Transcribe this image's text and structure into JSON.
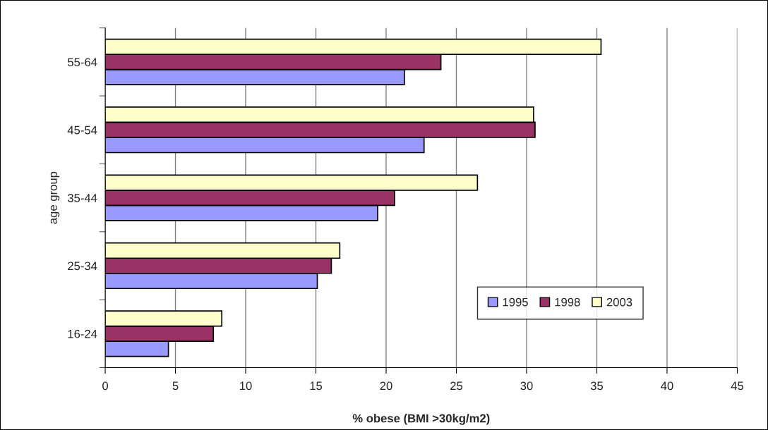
{
  "chart_data": {
    "type": "bar",
    "orientation": "horizontal",
    "xlabel": "% obese (BMI >30kg/m2)",
    "ylabel": "age group",
    "categories": [
      "55-64",
      "45-54",
      "35-44",
      "25-34",
      "16-24"
    ],
    "series": [
      {
        "name": "1995",
        "color": "#9999ff",
        "values": [
          21.3,
          22.7,
          19.4,
          15.1,
          4.5
        ]
      },
      {
        "name": "1998",
        "color": "#993366",
        "values": [
          23.9,
          30.6,
          20.6,
          16.1,
          7.7
        ]
      },
      {
        "name": "2003",
        "color": "#ffffcc",
        "values": [
          35.3,
          30.5,
          26.5,
          16.7,
          8.3
        ]
      }
    ],
    "xlim": [
      0,
      45
    ],
    "xticks": [
      0,
      5,
      10,
      15,
      20,
      25,
      30,
      35,
      40,
      45
    ],
    "grid": "x",
    "legend": "bottom right"
  }
}
